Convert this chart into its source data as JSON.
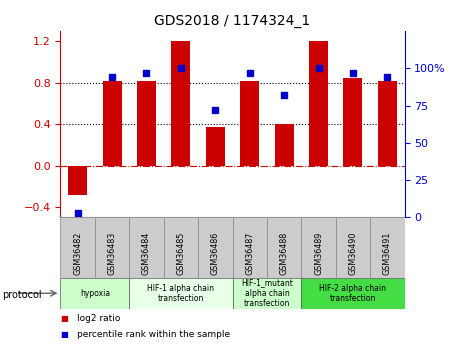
{
  "title": "GDS2018 / 1174324_1",
  "samples": [
    "GSM36482",
    "GSM36483",
    "GSM36484",
    "GSM36485",
    "GSM36486",
    "GSM36487",
    "GSM36488",
    "GSM36489",
    "GSM36490",
    "GSM36491"
  ],
  "log2_ratio": [
    -0.28,
    0.82,
    0.82,
    1.2,
    0.37,
    0.82,
    0.4,
    1.2,
    0.85,
    0.82
  ],
  "percentile_rank": [
    3,
    94,
    97,
    100,
    72,
    97,
    82,
    100,
    97,
    94
  ],
  "bar_color": "#cc0000",
  "dot_color": "#0000cc",
  "ylim_left": [
    -0.5,
    1.3
  ],
  "yticks_left": [
    -0.4,
    0.0,
    0.4,
    0.8,
    1.2
  ],
  "ylim_right": [
    0,
    125
  ],
  "yticks_right": [
    0,
    25,
    50,
    75,
    100
  ],
  "ytick_labels_right": [
    "0",
    "25",
    "50",
    "75",
    "100%"
  ],
  "dotted_lines": [
    0.4,
    0.8
  ],
  "hline_color": "#cc0000",
  "hline_style": "-.",
  "protocols": [
    {
      "label": "hypoxia",
      "start": 0,
      "end": 2,
      "color": "#ccffcc"
    },
    {
      "label": "HIF-1 alpha chain\ntransfection",
      "start": 2,
      "end": 5,
      "color": "#e8ffe8"
    },
    {
      "label": "HIF-1_mutant\nalpha chain\ntransfection",
      "start": 5,
      "end": 7,
      "color": "#ccffcc"
    },
    {
      "label": "HIF-2 alpha chain\ntransfection",
      "start": 7,
      "end": 10,
      "color": "#44dd44"
    }
  ],
  "legend_items": [
    {
      "color": "#cc0000",
      "label": "log2 ratio"
    },
    {
      "color": "#0000cc",
      "label": "percentile rank within the sample"
    }
  ],
  "title_fontsize": 10,
  "tick_fontsize": 8,
  "bar_width": 0.55,
  "sample_box_color": "#cccccc",
  "sample_box_edge": "#888888",
  "proto_edge": "#555555",
  "background": "#ffffff"
}
